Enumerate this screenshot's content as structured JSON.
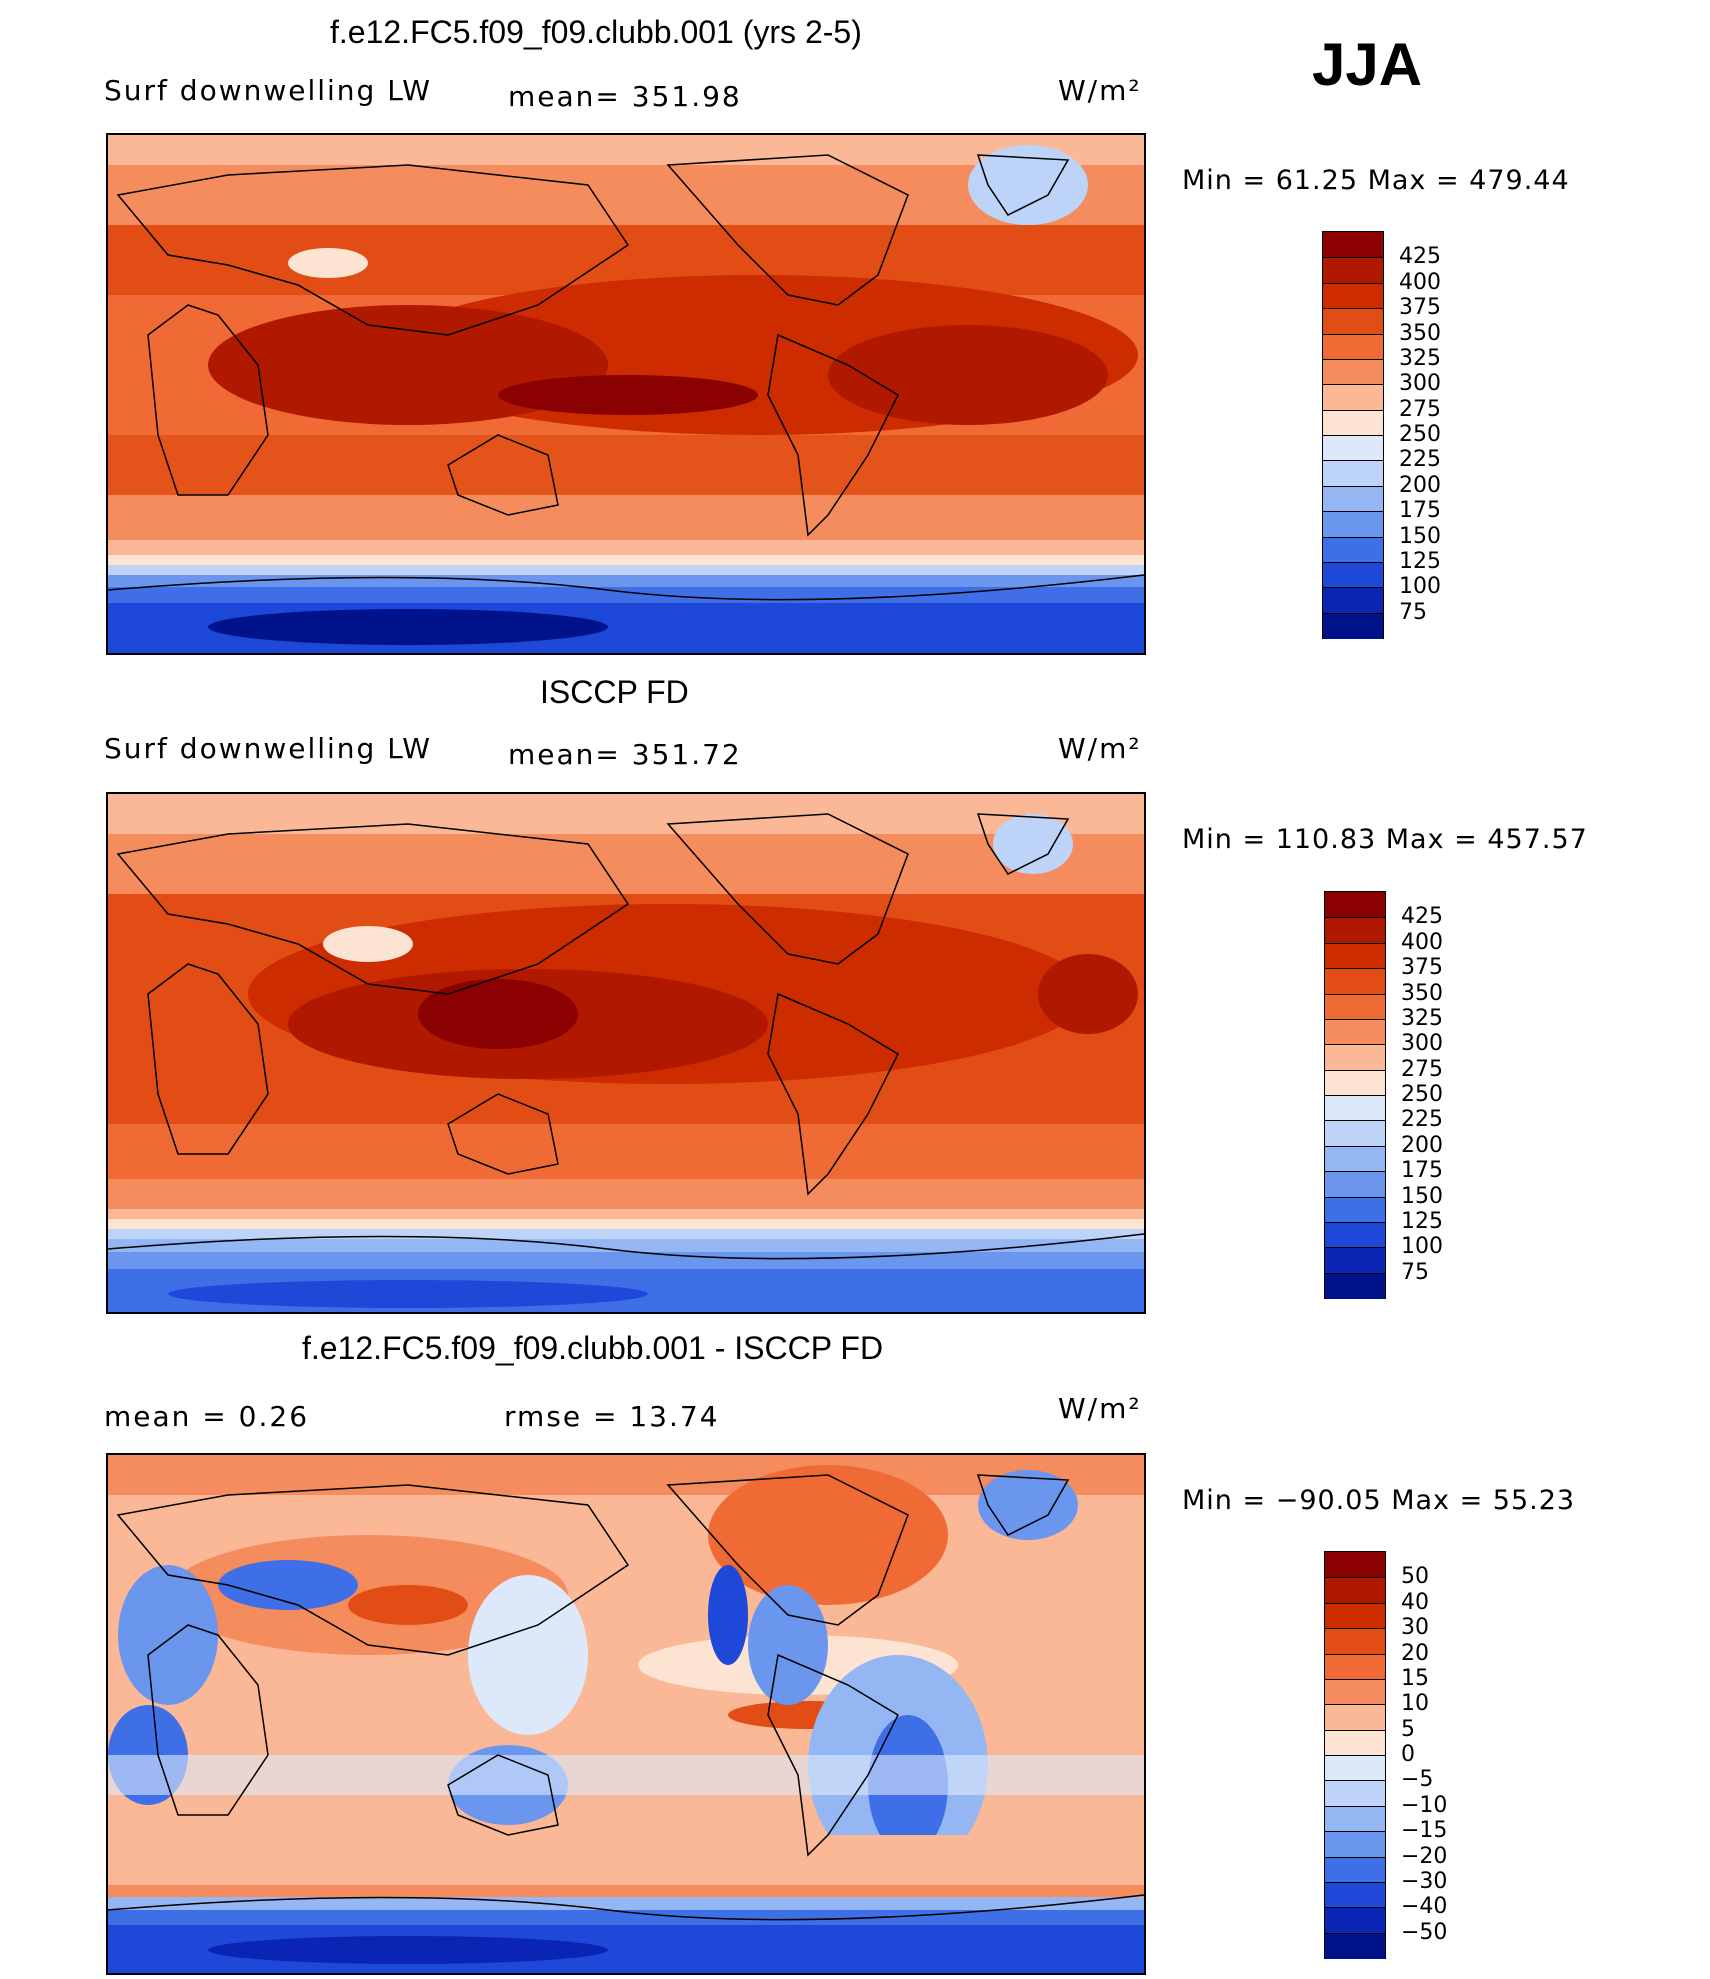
{
  "season": "JJA",
  "panels": [
    {
      "title": "f.e12.FC5.f09_f09.clubb.001 (yrs 2-5)",
      "left_label": "Surf downwelling LW",
      "center_label": "mean= 351.98",
      "units": "W/m²",
      "minmax": "Min =   61.25 Max = 479.44",
      "colorbar_labels": [
        "425",
        "400",
        "375",
        "350",
        "325",
        "300",
        "275",
        "250",
        "225",
        "200",
        "175",
        "150",
        "125",
        "100",
        "75"
      ],
      "colorbar_colors": [
        "#8b0000",
        "#b01800",
        "#cc2c00",
        "#e14d14",
        "#f06a35",
        "#f58c5e",
        "#fab896",
        "#fde4d2",
        "#dde9fb",
        "#bdd3f7",
        "#94b6f3",
        "#6b96ee",
        "#3f6fe6",
        "#1e48d8",
        "#0a24b4",
        "#00138a"
      ]
    },
    {
      "title": "ISCCP FD",
      "left_label": "Surf downwelling LW",
      "center_label": "mean= 351.72",
      "units": "W/m²",
      "minmax": "Min = 110.83 Max = 457.57",
      "colorbar_labels": [
        "425",
        "400",
        "375",
        "350",
        "325",
        "300",
        "275",
        "250",
        "225",
        "200",
        "175",
        "150",
        "125",
        "100",
        "75"
      ],
      "colorbar_colors": [
        "#8b0000",
        "#b01800",
        "#cc2c00",
        "#e14d14",
        "#f06a35",
        "#f58c5e",
        "#fab896",
        "#fde4d2",
        "#dde9fb",
        "#bdd3f7",
        "#94b6f3",
        "#6b96ee",
        "#3f6fe6",
        "#1e48d8",
        "#0a24b4",
        "#00138a"
      ]
    },
    {
      "title": "f.e12.FC5.f09_f09.clubb.001 - ISCCP FD",
      "left_label": "mean =     0.26",
      "center_label": "rmse =    13.74",
      "units": "W/m²",
      "minmax": "Min = −90.05 Max =   55.23",
      "colorbar_labels": [
        "50",
        "40",
        "30",
        "20",
        "15",
        "10",
        "5",
        "0",
        "−5",
        "−10",
        "−15",
        "−20",
        "−30",
        "−40",
        "−50"
      ],
      "colorbar_colors": [
        "#8b0000",
        "#b01800",
        "#cc2c00",
        "#e14d14",
        "#f06a35",
        "#f58c5e",
        "#fab896",
        "#fde4d2",
        "#dde9fb",
        "#bdd3f7",
        "#94b6f3",
        "#6b96ee",
        "#3f6fe6",
        "#1e48d8",
        "#0a24b4",
        "#00138a"
      ]
    }
  ]
}
